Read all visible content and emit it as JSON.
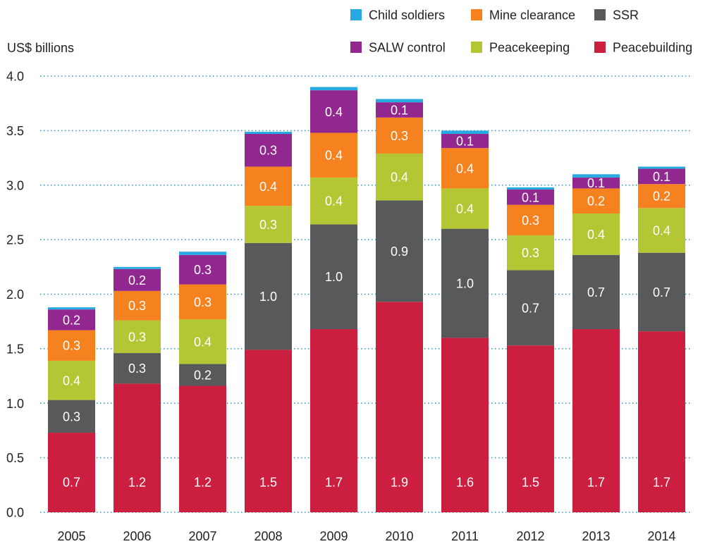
{
  "chart_data": {
    "type": "bar",
    "stacked": true,
    "ylabel": "US$ billions",
    "ylim": [
      0,
      4.0
    ],
    "yticks": [
      "0.0",
      "0.5",
      "1.0",
      "1.5",
      "2.0",
      "2.5",
      "3.0",
      "3.5",
      "4.0"
    ],
    "grid": true,
    "grid_color": "#3aa0b8",
    "legend_position": "top-right",
    "categories": [
      "2005",
      "2006",
      "2007",
      "2008",
      "2009",
      "2010",
      "2011",
      "2012",
      "2013",
      "2014"
    ],
    "series": [
      {
        "name": "Peacebuilding",
        "color": "#cc1e3f",
        "values": [
          0.73,
          1.18,
          1.16,
          1.49,
          1.68,
          1.93,
          1.6,
          1.53,
          1.68,
          1.66
        ]
      },
      {
        "name": "SSR",
        "color": "#58595b",
        "values": [
          0.3,
          0.28,
          0.2,
          0.98,
          0.96,
          0.93,
          1.0,
          0.69,
          0.68,
          0.72
        ]
      },
      {
        "name": "Peacekeeping",
        "color": "#b5c635",
        "values": [
          0.36,
          0.3,
          0.41,
          0.34,
          0.43,
          0.43,
          0.37,
          0.32,
          0.38,
          0.41
        ]
      },
      {
        "name": "Mine clearance",
        "color": "#f5821f",
        "values": [
          0.28,
          0.27,
          0.32,
          0.36,
          0.41,
          0.33,
          0.37,
          0.28,
          0.23,
          0.22
        ]
      },
      {
        "name": "SALW control",
        "color": "#92278f",
        "values": [
          0.19,
          0.2,
          0.27,
          0.3,
          0.39,
          0.14,
          0.13,
          0.14,
          0.1,
          0.14
        ]
      },
      {
        "name": "Child soldiers",
        "color": "#27aae1",
        "values": [
          0.02,
          0.02,
          0.03,
          0.02,
          0.03,
          0.03,
          0.03,
          0.02,
          0.03,
          0.02
        ]
      }
    ]
  }
}
